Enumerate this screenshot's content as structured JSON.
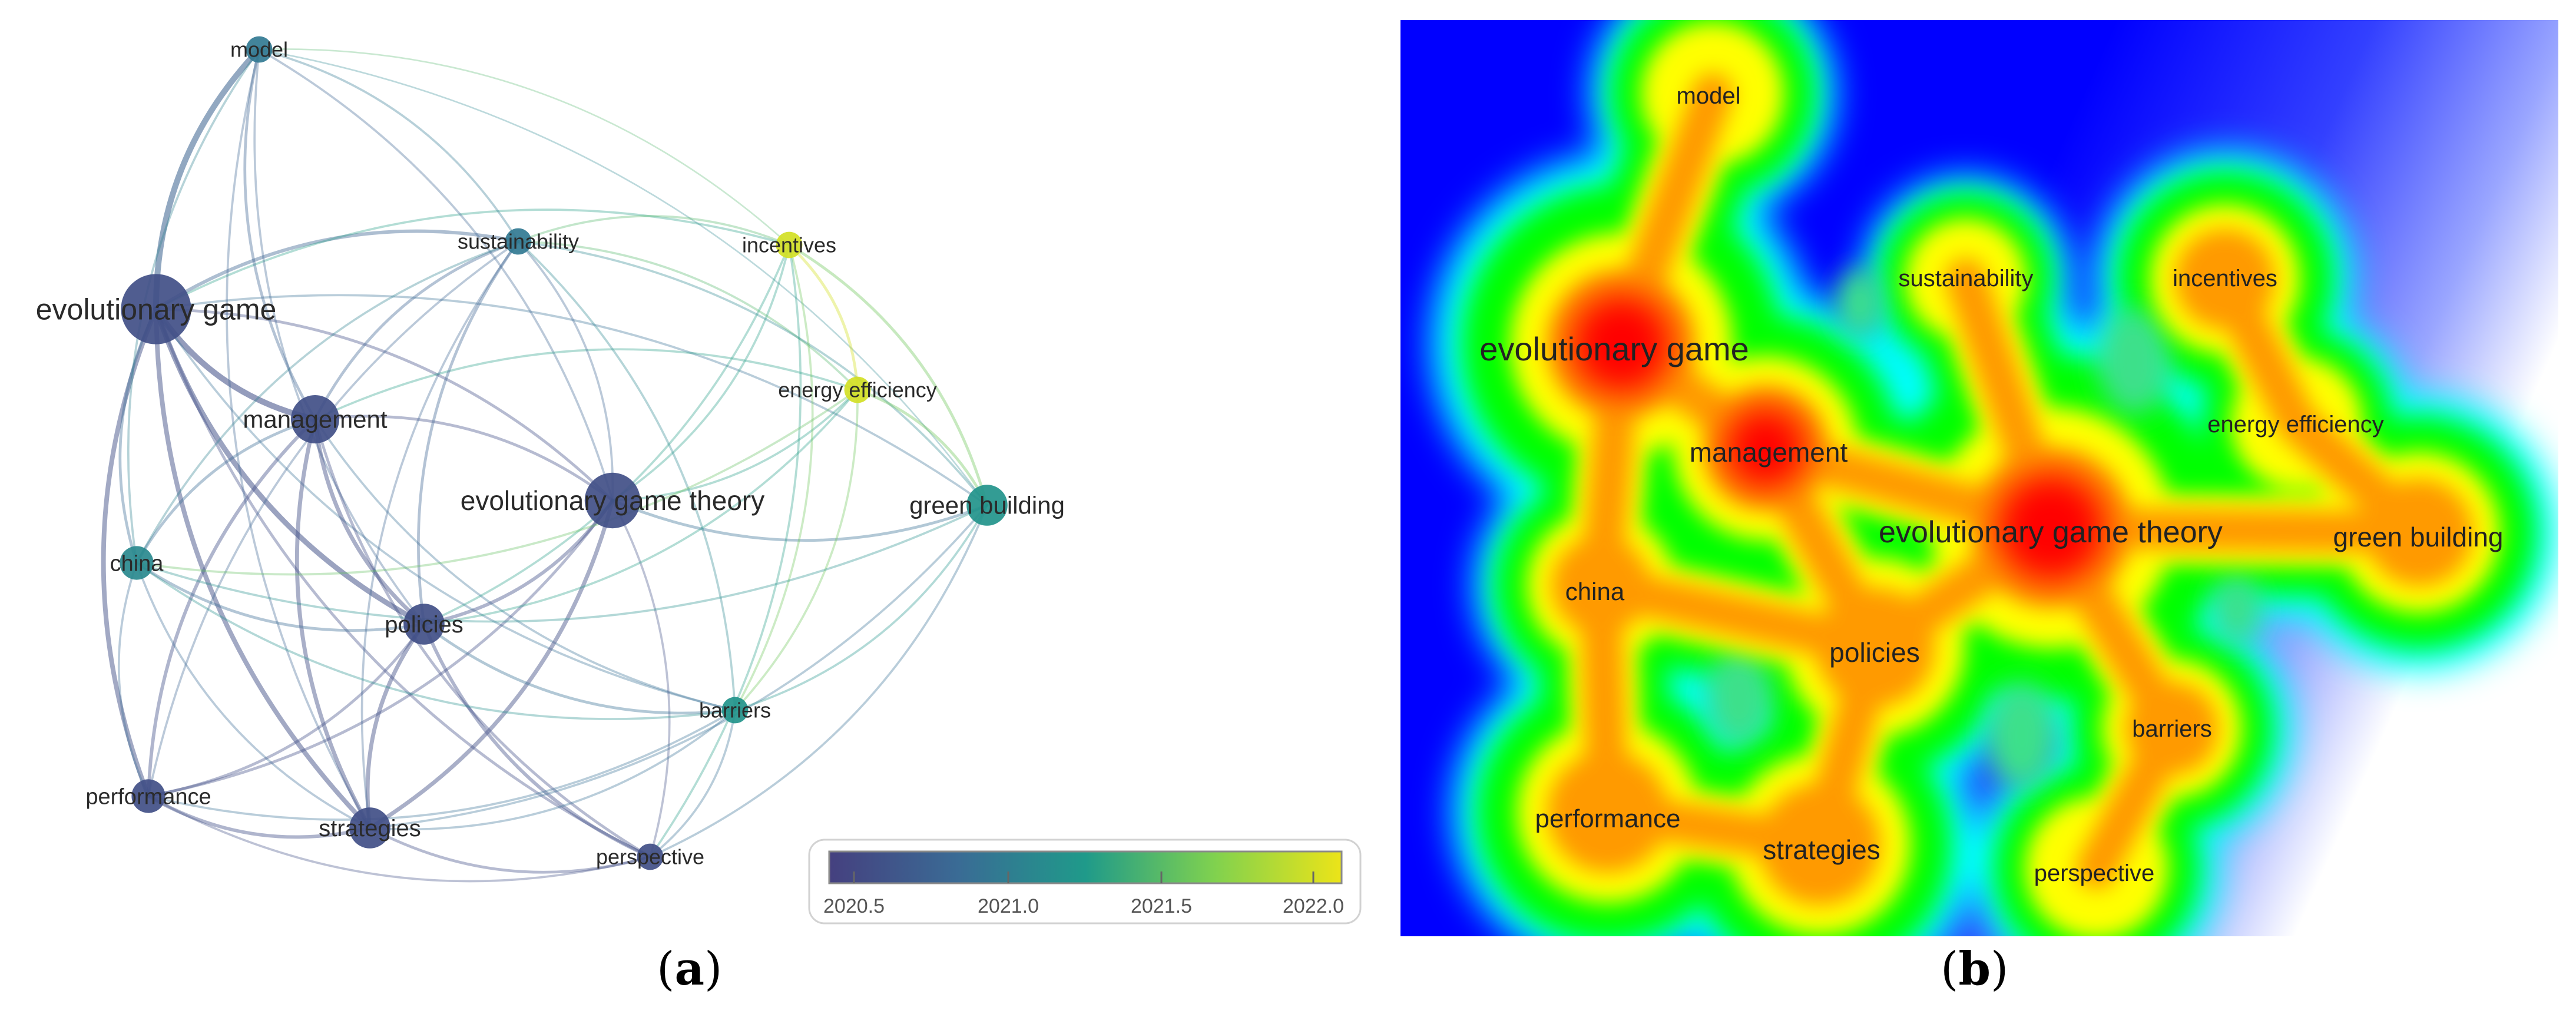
{
  "panels": {
    "a": {
      "caption_open": "(",
      "caption_letter": "a",
      "caption_close": ")"
    },
    "b": {
      "caption_open": "(",
      "caption_letter": "b",
      "caption_close": ")"
    }
  },
  "legend": {
    "ticks": [
      "2020.5",
      "2021.0",
      "2021.5",
      "2022.0"
    ],
    "colors": [
      "#45407f",
      "#3a6b95",
      "#1f9a8a",
      "#7fd14f",
      "#ece418"
    ]
  },
  "network": {
    "nodes": [
      {
        "label": "model",
        "year": 2020.95,
        "weight": 2
      },
      {
        "label": "sustainability",
        "year": 2020.95,
        "weight": 2
      },
      {
        "label": "incentives",
        "year": 2022.0,
        "weight": 2
      },
      {
        "label": "evolutionary game",
        "year": 2020.55,
        "weight": 8
      },
      {
        "label": "energy efficiency",
        "year": 2022.0,
        "weight": 2
      },
      {
        "label": "management",
        "year": 2020.55,
        "weight": 5
      },
      {
        "label": "evolutionary game theory",
        "year": 2020.55,
        "weight": 6
      },
      {
        "label": "green building",
        "year": 2021.2,
        "weight": 4
      },
      {
        "label": "china",
        "year": 2021.1,
        "weight": 3
      },
      {
        "label": "policies",
        "year": 2020.55,
        "weight": 4
      },
      {
        "label": "barriers",
        "year": 2021.2,
        "weight": 2
      },
      {
        "label": "performance",
        "year": 2020.55,
        "weight": 3
      },
      {
        "label": "strategies",
        "year": 2020.55,
        "weight": 4
      },
      {
        "label": "perspective",
        "year": 2020.55,
        "weight": 2
      }
    ]
  },
  "density": {
    "labels": [
      "model",
      "sustainability",
      "incentives",
      "evolutionary game",
      "management",
      "energy efficiency",
      "evolutionary game theory",
      "green building",
      "china",
      "policies",
      "barriers",
      "performance",
      "strategies",
      "perspective"
    ],
    "colors": [
      "#0000ff",
      "#00ffff",
      "#00ff00",
      "#ffff00",
      "#ff0000"
    ]
  }
}
